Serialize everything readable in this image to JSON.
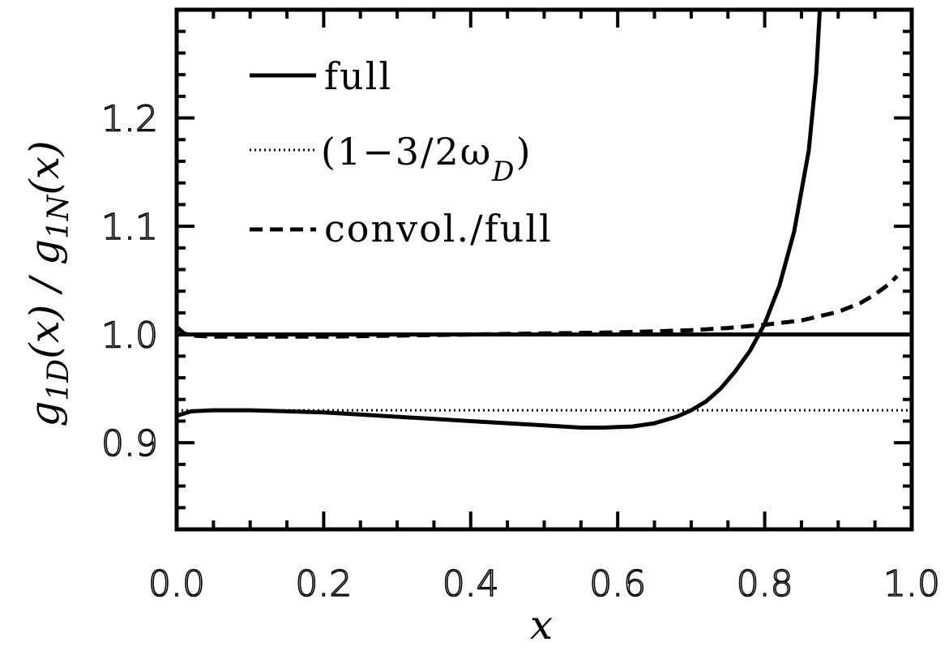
{
  "chart_data": {
    "type": "line",
    "title": "",
    "xlabel": "x",
    "ylabel": {
      "left": "g",
      "left_sub": "1D",
      "left_arg": "(x)",
      "sep": " / ",
      "right": "g",
      "right_sub": "1N",
      "right_arg": "(x)"
    },
    "xlim": [
      0.0,
      1.0
    ],
    "ylim": [
      0.82,
      1.3
    ],
    "xticks": [
      0.0,
      0.2,
      0.4,
      0.6,
      0.8,
      1.0
    ],
    "xtick_labels": [
      "0.0",
      "0.2",
      "0.4",
      "0.6",
      "0.8",
      "1.0"
    ],
    "yticks": [
      0.9,
      1.0,
      1.1,
      1.2
    ],
    "ytick_labels": [
      "0.9",
      "1.0",
      "1.1",
      "1.2"
    ],
    "grid": false,
    "legend_position": "top-left",
    "legend": [
      {
        "label": "full",
        "style": "solid"
      },
      {
        "label": "(1−3/2ω",
        "sub": "D",
        "suffix": ")",
        "style": "dotted"
      },
      {
        "label": "convol./full",
        "style": "dashed"
      }
    ],
    "series": [
      {
        "style": "solid",
        "x": [
          0.0,
          0.02,
          0.05,
          0.1,
          0.15,
          0.2,
          0.25,
          0.3,
          0.35,
          0.4,
          0.45,
          0.5,
          0.55,
          0.58,
          0.62,
          0.65,
          0.68,
          0.7,
          0.72,
          0.74,
          0.76,
          0.78,
          0.8,
          0.82,
          0.84,
          0.86,
          0.87,
          0.875
        ],
        "y": [
          0.925,
          0.929,
          0.93,
          0.93,
          0.929,
          0.928,
          0.926,
          0.924,
          0.922,
          0.92,
          0.918,
          0.916,
          0.914,
          0.914,
          0.915,
          0.918,
          0.924,
          0.93,
          0.938,
          0.95,
          0.966,
          0.985,
          1.01,
          1.045,
          1.095,
          1.17,
          1.24,
          1.3
        ]
      },
      {
        "style": "solid",
        "x": [
          0.0,
          1.0
        ],
        "y": [
          1.0,
          1.0
        ]
      },
      {
        "style": "dotted",
        "x": [
          0.0,
          1.0
        ],
        "y": [
          0.93,
          0.93
        ]
      },
      {
        "style": "dashed",
        "x": [
          0.0,
          0.01,
          0.02,
          0.05,
          0.1,
          0.2,
          0.3,
          0.4,
          0.5,
          0.6,
          0.7,
          0.75,
          0.8,
          0.85,
          0.9,
          0.93,
          0.95,
          0.97,
          0.98
        ],
        "y": [
          1.007,
          1.001,
          0.999,
          0.998,
          0.998,
          0.998,
          0.999,
          1.0,
          1.001,
          1.002,
          1.004,
          1.006,
          1.009,
          1.013,
          1.021,
          1.029,
          1.037,
          1.047,
          1.054
        ]
      }
    ]
  }
}
